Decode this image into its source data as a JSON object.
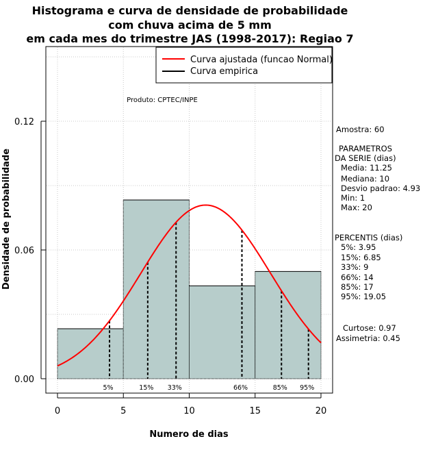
{
  "chart_data": {
    "type": "bar",
    "title_lines": [
      "Histograma e curva de densidade de probabilidade",
      "com chuva acima de 5 mm",
      "em cada mes do trimestre JAS (1998-2017): Regiao 7"
    ],
    "xlabel": "Numero de dias",
    "ylabel": "Densidade de probabilidade",
    "xlim": [
      0,
      20
    ],
    "ylim": [
      0,
      0.15
    ],
    "x_ticks": [
      0,
      5,
      10,
      15,
      20
    ],
    "x_tick_labels": [
      "0",
      "5",
      "10",
      "15",
      "20"
    ],
    "y_ticks": [
      0,
      0.06,
      0.12
    ],
    "y_tick_labels": [
      "0.00",
      "0.06",
      "0.12"
    ],
    "grid": true,
    "legend_position": "top-right",
    "legend": [
      {
        "label": "Curva ajustada (funcao Normal)",
        "color": "#ff0000"
      },
      {
        "label": "Curva empirica",
        "color": "#000000"
      }
    ],
    "bins": [
      {
        "start": 0,
        "end": 5,
        "density": 0.0233
      },
      {
        "start": 5,
        "end": 10,
        "density": 0.0833
      },
      {
        "start": 10,
        "end": 15,
        "density": 0.0433
      },
      {
        "start": 15,
        "end": 20,
        "density": 0.05
      }
    ],
    "bar_color": "#b7cdcb",
    "normal_fit": {
      "mean": 11.25,
      "sd": 4.93,
      "color": "#ff0000"
    },
    "percentile_lines": [
      {
        "label": "5%",
        "x": 3.95
      },
      {
        "label": "15%",
        "x": 6.85
      },
      {
        "label": "33%",
        "x": 9
      },
      {
        "label": "66%",
        "x": 14
      },
      {
        "label": "85%",
        "x": 17
      },
      {
        "label": "95%",
        "x": 19.05
      }
    ],
    "annotation": "Produto: CPTEC/INPE"
  },
  "side_panel": {
    "amostra": "Amostra: 60",
    "params_title_1": "PARAMETROS",
    "params_title_2": "DA SERIE (dias)",
    "media": "Media: 11.25",
    "mediana": "Mediana: 10",
    "desvio": "Desvio padrao: 4.93",
    "min": "Min: 1",
    "max": "Max: 20",
    "percentis_title": "PERCENTIS (dias)",
    "p5": "5%: 3.95",
    "p15": "15%: 6.85",
    "p33": "33%: 9",
    "p66": "66%: 14",
    "p85": "85%: 17",
    "p95": "95%: 19.05",
    "curtose": "Curtose: 0.97",
    "assimetria": "Assimetria: 0.45"
  }
}
